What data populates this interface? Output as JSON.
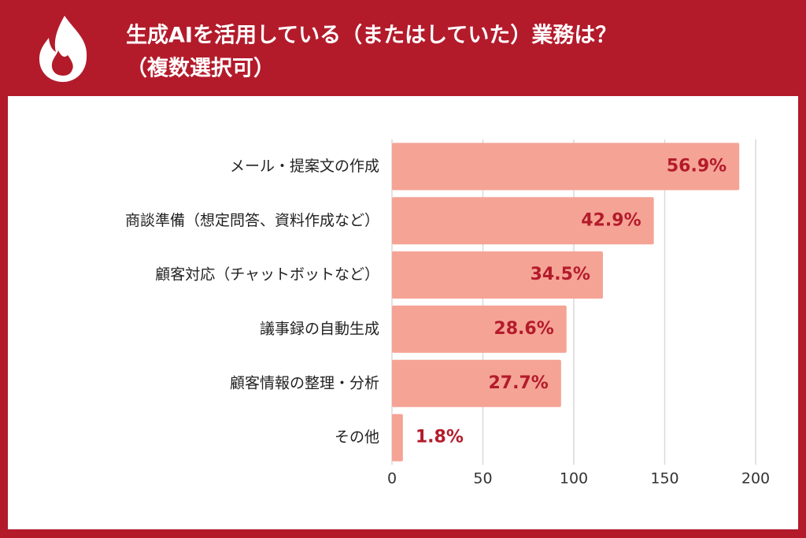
{
  "chart_data": {
    "type": "barh",
    "title": "生成AIを活用している（またはしていた）業務は？",
    "subtitle": "（複数選択可）",
    "categories": [
      "メール・提案文の作成",
      "商談準備（想定問答、資料作成など）",
      "顧客対応（チャットボットなど）",
      "議事録の自動生成",
      "顧客情報の整理・分析",
      "その他"
    ],
    "values": [
      191,
      144,
      116,
      96,
      93,
      6
    ],
    "value_labels": [
      "56.9%",
      "42.9%",
      "34.5%",
      "28.6%",
      "27.7%",
      "1.8%"
    ],
    "color": "#f5a395",
    "label_color": "#b31b2b",
    "xlim": [
      0,
      200
    ],
    "xticks": [
      0,
      50,
      100,
      150,
      200
    ],
    "grid": true
  }
}
